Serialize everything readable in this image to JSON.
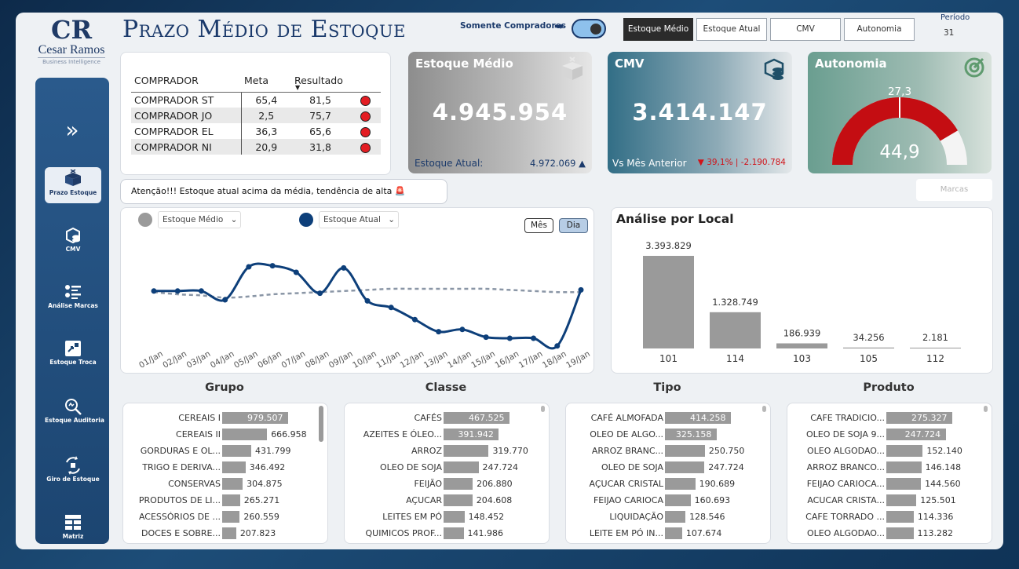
{
  "logo": {
    "monogram": "CR",
    "brand": "Cesar Ramos",
    "tagline": "Business Intelligence"
  },
  "title": "Prazo Médio de Estoque",
  "sidebar": {
    "expand_icon": "double-chevron-right-icon",
    "items": [
      {
        "label": "Prazo Estoque",
        "icon": "box-icon",
        "active": true
      },
      {
        "label": "CMV",
        "icon": "coins-icon",
        "active": false
      },
      {
        "label": "Análise Marcas",
        "icon": "list-icon",
        "active": false
      },
      {
        "label": "Estoque Troca",
        "icon": "exchange-icon",
        "active": false
      },
      {
        "label": "Estoque Auditoria",
        "icon": "magnifier-icon",
        "active": false
      },
      {
        "label": "Giro de Estoque",
        "icon": "cycle-icon",
        "active": false
      },
      {
        "label": "Matriz",
        "icon": "grid-icon",
        "active": false
      }
    ]
  },
  "toggle": {
    "label": "Somente Compradores",
    "on": true
  },
  "segments": [
    "Estoque Médio",
    "Estoque Atual",
    "CMV",
    "Autonomia"
  ],
  "active_segment": "Estoque Médio",
  "periodo": {
    "label": "Período",
    "value": "31"
  },
  "buyers": {
    "headers": [
      "COMPRADOR",
      "Meta",
      "Resultado"
    ],
    "rows": [
      {
        "name": "COMPRADOR ST",
        "meta": "65,4",
        "resultado": "81,5"
      },
      {
        "name": "COMPRADOR JO",
        "meta": "2,5",
        "resultado": "75,7"
      },
      {
        "name": "COMPRADOR EL",
        "meta": "36,3",
        "resultado": "65,6"
      },
      {
        "name": "COMPRADOR NI",
        "meta": "20,9",
        "resultado": "31,8"
      }
    ],
    "status_color": "#e31d23"
  },
  "kpis": {
    "estoque_medio": {
      "title": "Estoque Médio",
      "value": "4.945.954",
      "foot_label": "Estoque Atual:",
      "foot_value": "4.972.069 ▲"
    },
    "cmv": {
      "title": "CMV",
      "value": "3.414.147",
      "foot_label": "Vs Mês Anterior",
      "foot_value": "▼ 39,1% | -2.190.784"
    },
    "autonomia": {
      "title": "Autonomia",
      "target": "27,3",
      "value": "44,9",
      "gauge_fraction": 0.83
    }
  },
  "alert": {
    "text": "Atenção!!! Estoque atual acima da média, tendência de alta 🚨"
  },
  "marcas_button": "Marcas",
  "line_chart_controls": {
    "legend": [
      {
        "label": "Estoque Médio",
        "color": "#9a9a9a"
      },
      {
        "label": "Estoque Atual",
        "color": "#0d3f7a"
      }
    ],
    "buttons": [
      "Mês",
      "Dia"
    ],
    "active_button": "Dia"
  },
  "chart_data": [
    {
      "type": "line",
      "x": [
        "01/Jan",
        "02/Jan",
        "03/Jan",
        "04/Jan",
        "05/Jan",
        "06/Jan",
        "07/Jan",
        "08/Jan",
        "09/Jan",
        "10/Jan",
        "11/Jan",
        "12/Jan",
        "13/Jan",
        "14/Jan",
        "15/Jan",
        "16/Jan",
        "17/Jan",
        "18/Jan",
        "19/Jan"
      ],
      "ylim": [
        0,
        100
      ],
      "series": [
        {
          "name": "Estoque Médio",
          "color": "#8a96a6",
          "style": "dashed",
          "values": [
            52,
            50,
            49,
            47,
            48,
            50,
            51,
            52,
            53,
            54,
            55,
            55,
            55,
            55,
            55,
            54,
            53,
            52,
            52
          ]
        },
        {
          "name": "Estoque Atual",
          "color": "#0d3f7a",
          "style": "solid",
          "values": [
            53,
            53,
            53,
            45,
            75,
            76,
            70,
            51,
            74,
            44,
            38,
            27,
            16,
            18,
            11,
            10,
            10,
            3,
            54
          ]
        }
      ]
    },
    {
      "type": "bar",
      "title": "Análise por Local",
      "categories": [
        "101",
        "114",
        "103",
        "105",
        "112"
      ],
      "values": [
        3393829,
        1328749,
        186939,
        34256,
        2181
      ],
      "labels": [
        "3.393.829",
        "1.328.749",
        "186.939",
        "34.256",
        "2.181"
      ],
      "color": "#9a9a9a"
    },
    {
      "type": "bar",
      "orientation": "horizontal",
      "title": "Grupo",
      "categories": [
        "CEREAIS I",
        "CEREAIS II",
        "GORDURAS E OL...",
        "TRIGO E DERIVA...",
        "CONSERVAS",
        "PRODUTOS DE LI...",
        "ACESSÓRIOS DE ...",
        "DOCES E SOBRE..."
      ],
      "values": [
        979507,
        666958,
        431799,
        346492,
        304875,
        265271,
        260559,
        207823
      ],
      "labels": [
        "979.507",
        "666.958",
        "431.799",
        "346.492",
        "304.875",
        "265.271",
        "260.559",
        "207.823"
      ]
    },
    {
      "type": "bar",
      "orientation": "horizontal",
      "title": "Classe",
      "categories": [
        "CAFÉS",
        "AZEITES E ÓLEO...",
        "ARROZ",
        "OLEO DE SOJA",
        "FEIJÃO",
        "AÇUCAR",
        "LEITES EM PÓ",
        "QUIMICOS PROF..."
      ],
      "values": [
        467525,
        391942,
        319770,
        247724,
        206880,
        204608,
        148452,
        141986
      ],
      "labels": [
        "467.525",
        "391.942",
        "319.770",
        "247.724",
        "206.880",
        "204.608",
        "148.452",
        "141.986"
      ]
    },
    {
      "type": "bar",
      "orientation": "horizontal",
      "title": "Tipo",
      "categories": [
        "CAFÉ ALMOFADA",
        "OLEO DE ALGO...",
        "ARROZ BRANC...",
        "OLEO DE SOJA",
        "AÇUCAR CRISTAL",
        "FEIJAO CARIOCA",
        "LIQUIDAÇÃO",
        "LEITE EM PÓ IN..."
      ],
      "values": [
        414258,
        325158,
        250750,
        247724,
        190689,
        160693,
        128546,
        107674
      ],
      "labels": [
        "414.258",
        "325.158",
        "250.750",
        "247.724",
        "190.689",
        "160.693",
        "128.546",
        "107.674"
      ]
    },
    {
      "type": "bar",
      "orientation": "horizontal",
      "title": "Produto",
      "categories": [
        "CAFE TRADICIO...",
        "OLEO DE SOJA 9...",
        "OLEO ALGODAO...",
        "ARROZ BRANCO...",
        "FEIJAO CARIOCA...",
        "ACUCAR CRISTA...",
        "CAFE TORRADO ...",
        "OLEO ALGODAO..."
      ],
      "values": [
        275327,
        247724,
        152140,
        146148,
        144560,
        125501,
        114336,
        113282
      ],
      "labels": [
        "275.327",
        "247.724",
        "152.140",
        "146.148",
        "144.560",
        "125.501",
        "114.336",
        "113.282"
      ]
    }
  ]
}
